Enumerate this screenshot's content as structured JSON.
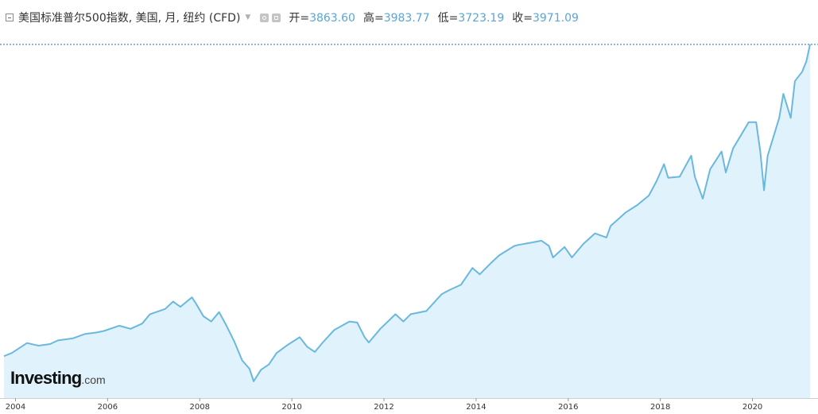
{
  "header": {
    "title": "美国标准普尔500指数, 美国, 月, 纽约 (CFD)",
    "ohlc": [
      {
        "label": "开=",
        "value": "3863.60"
      },
      {
        "label": "高=",
        "value": "3983.77"
      },
      {
        "label": "低=",
        "value": "3723.19"
      },
      {
        "label": "收=",
        "value": "3971.09"
      }
    ]
  },
  "logo": {
    "brand": "Investing",
    "suffix": ".com"
  },
  "colors": {
    "line": "#6bb8de",
    "fill": "#e0f3fc",
    "ohlc_value": "#5aa6d6",
    "last_price_line": "#1f6f9a"
  },
  "chart_data": {
    "type": "area",
    "x_tick_labels": [
      "2004",
      "2006",
      "2008",
      "2010",
      "2012",
      "2014",
      "2016",
      "2018",
      "2020"
    ],
    "xlim": [
      2003.75,
      2021.25
    ],
    "ylim": [
      600,
      4000
    ],
    "last_close": 3971.09,
    "grid": false,
    "points": [
      [
        2003.75,
        1000
      ],
      [
        2003.92,
        1030
      ],
      [
        2004.25,
        1125
      ],
      [
        2004.5,
        1100
      ],
      [
        2004.75,
        1115
      ],
      [
        2004.92,
        1150
      ],
      [
        2005.25,
        1170
      ],
      [
        2005.5,
        1210
      ],
      [
        2005.75,
        1225
      ],
      [
        2005.92,
        1240
      ],
      [
        2006.25,
        1290
      ],
      [
        2006.5,
        1260
      ],
      [
        2006.75,
        1310
      ],
      [
        2006.92,
        1400
      ],
      [
        2007.25,
        1450
      ],
      [
        2007.42,
        1520
      ],
      [
        2007.58,
        1470
      ],
      [
        2007.83,
        1560
      ],
      [
        2007.92,
        1500
      ],
      [
        2008.08,
        1380
      ],
      [
        2008.25,
        1330
      ],
      [
        2008.42,
        1420
      ],
      [
        2008.58,
        1290
      ],
      [
        2008.75,
        1140
      ],
      [
        2008.92,
        960
      ],
      [
        2009.08,
        880
      ],
      [
        2009.17,
        760
      ],
      [
        2009.33,
        870
      ],
      [
        2009.5,
        920
      ],
      [
        2009.67,
        1030
      ],
      [
        2009.92,
        1110
      ],
      [
        2010.17,
        1180
      ],
      [
        2010.33,
        1090
      ],
      [
        2010.5,
        1040
      ],
      [
        2010.67,
        1130
      ],
      [
        2010.92,
        1250
      ],
      [
        2011.25,
        1330
      ],
      [
        2011.42,
        1320
      ],
      [
        2011.58,
        1180
      ],
      [
        2011.67,
        1130
      ],
      [
        2011.92,
        1260
      ],
      [
        2012.25,
        1400
      ],
      [
        2012.42,
        1330
      ],
      [
        2012.58,
        1400
      ],
      [
        2012.92,
        1430
      ],
      [
        2013.25,
        1590
      ],
      [
        2013.42,
        1630
      ],
      [
        2013.67,
        1680
      ],
      [
        2013.92,
        1840
      ],
      [
        2014.08,
        1780
      ],
      [
        2014.33,
        1890
      ],
      [
        2014.5,
        1960
      ],
      [
        2014.83,
        2050
      ],
      [
        2014.92,
        2060
      ],
      [
        2015.17,
        2080
      ],
      [
        2015.42,
        2100
      ],
      [
        2015.58,
        2050
      ],
      [
        2015.67,
        1940
      ],
      [
        2015.92,
        2040
      ],
      [
        2016.08,
        1940
      ],
      [
        2016.33,
        2070
      ],
      [
        2016.58,
        2170
      ],
      [
        2016.83,
        2130
      ],
      [
        2016.92,
        2240
      ],
      [
        2017.25,
        2370
      ],
      [
        2017.5,
        2440
      ],
      [
        2017.75,
        2530
      ],
      [
        2017.92,
        2670
      ],
      [
        2018.08,
        2830
      ],
      [
        2018.17,
        2700
      ],
      [
        2018.42,
        2710
      ],
      [
        2018.67,
        2910
      ],
      [
        2018.75,
        2710
      ],
      [
        2018.92,
        2500
      ],
      [
        2019.08,
        2780
      ],
      [
        2019.33,
        2950
      ],
      [
        2019.42,
        2750
      ],
      [
        2019.58,
        2980
      ],
      [
        2019.92,
        3230
      ],
      [
        2020.08,
        3230
      ],
      [
        2020.17,
        2950
      ],
      [
        2020.25,
        2580
      ],
      [
        2020.33,
        2910
      ],
      [
        2020.58,
        3270
      ],
      [
        2020.67,
        3500
      ],
      [
        2020.83,
        3270
      ],
      [
        2020.92,
        3620
      ],
      [
        2021.08,
        3710
      ],
      [
        2021.17,
        3810
      ],
      [
        2021.25,
        3971.09
      ]
    ]
  }
}
